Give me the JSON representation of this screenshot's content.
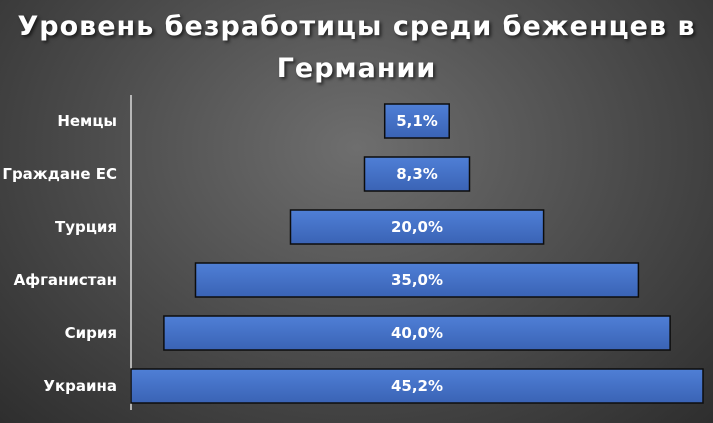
{
  "chart_data": {
    "type": "bar",
    "orientation": "horizontal-centered",
    "title": "Уровень безработицы среди беженцев в Германии",
    "categories": [
      "Немцы",
      "Граждане ЕС",
      "Турция",
      "Афганистан",
      "Сирия",
      "Украина"
    ],
    "values": [
      5.1,
      8.3,
      20.0,
      35.0,
      40.0,
      45.2
    ],
    "value_labels": [
      "5,1%",
      "8,3%",
      "20,0%",
      "35,0%",
      "40,0%",
      "45,2%"
    ],
    "xlim": [
      0,
      45.2
    ],
    "grid": false,
    "bar_color": "#4472c4"
  }
}
